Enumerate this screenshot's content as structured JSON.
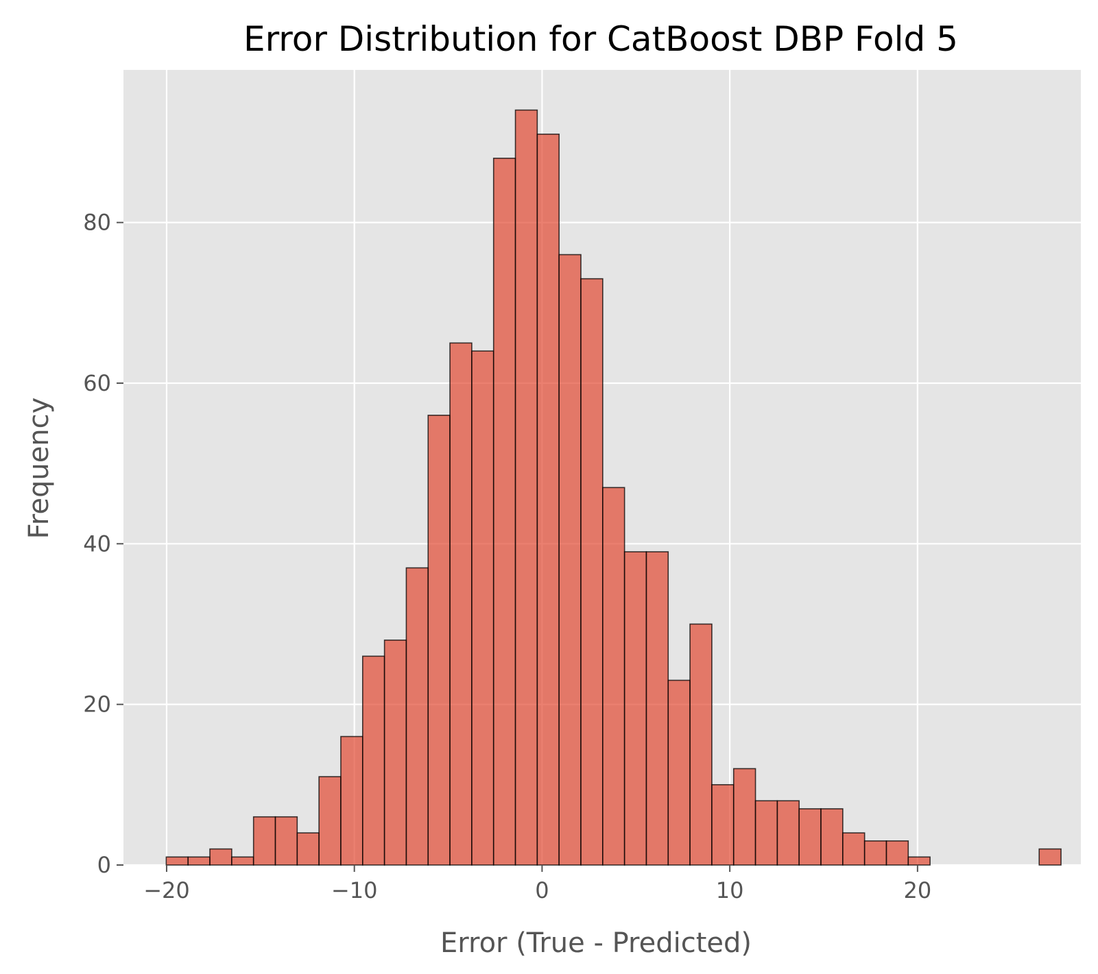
{
  "chart_data": {
    "type": "bar",
    "title": "Error Distribution for CatBoost DBP Fold 5",
    "xlabel": "Error (True - Predicted)",
    "ylabel": "Frequency",
    "xlim": [
      -22.3,
      28.7
    ],
    "ylim": [
      0,
      99
    ],
    "grid": true,
    "bin_start": -20.02,
    "bin_width": 1.1625,
    "values": [
      1,
      1,
      2,
      1,
      6,
      6,
      4,
      11,
      16,
      26,
      28,
      37,
      56,
      65,
      64,
      88,
      94,
      91,
      76,
      73,
      47,
      39,
      39,
      23,
      30,
      10,
      12,
      8,
      8,
      7,
      7,
      4,
      3,
      3,
      1,
      0,
      0,
      0,
      0,
      0,
      2
    ],
    "xticks": [
      -20,
      -10,
      0,
      10,
      20
    ],
    "xtick_labels": [
      "−20",
      "−10",
      "0",
      "10",
      "20"
    ],
    "yticks": [
      0,
      20,
      40,
      60,
      80
    ],
    "ytick_labels": [
      "0",
      "20",
      "40",
      "60",
      "80"
    ],
    "colors": {
      "bar_fill": "#E24A33",
      "bar_edge": "#000000",
      "plot_background": "#E5E5E5",
      "grid": "#FFFFFF"
    }
  }
}
